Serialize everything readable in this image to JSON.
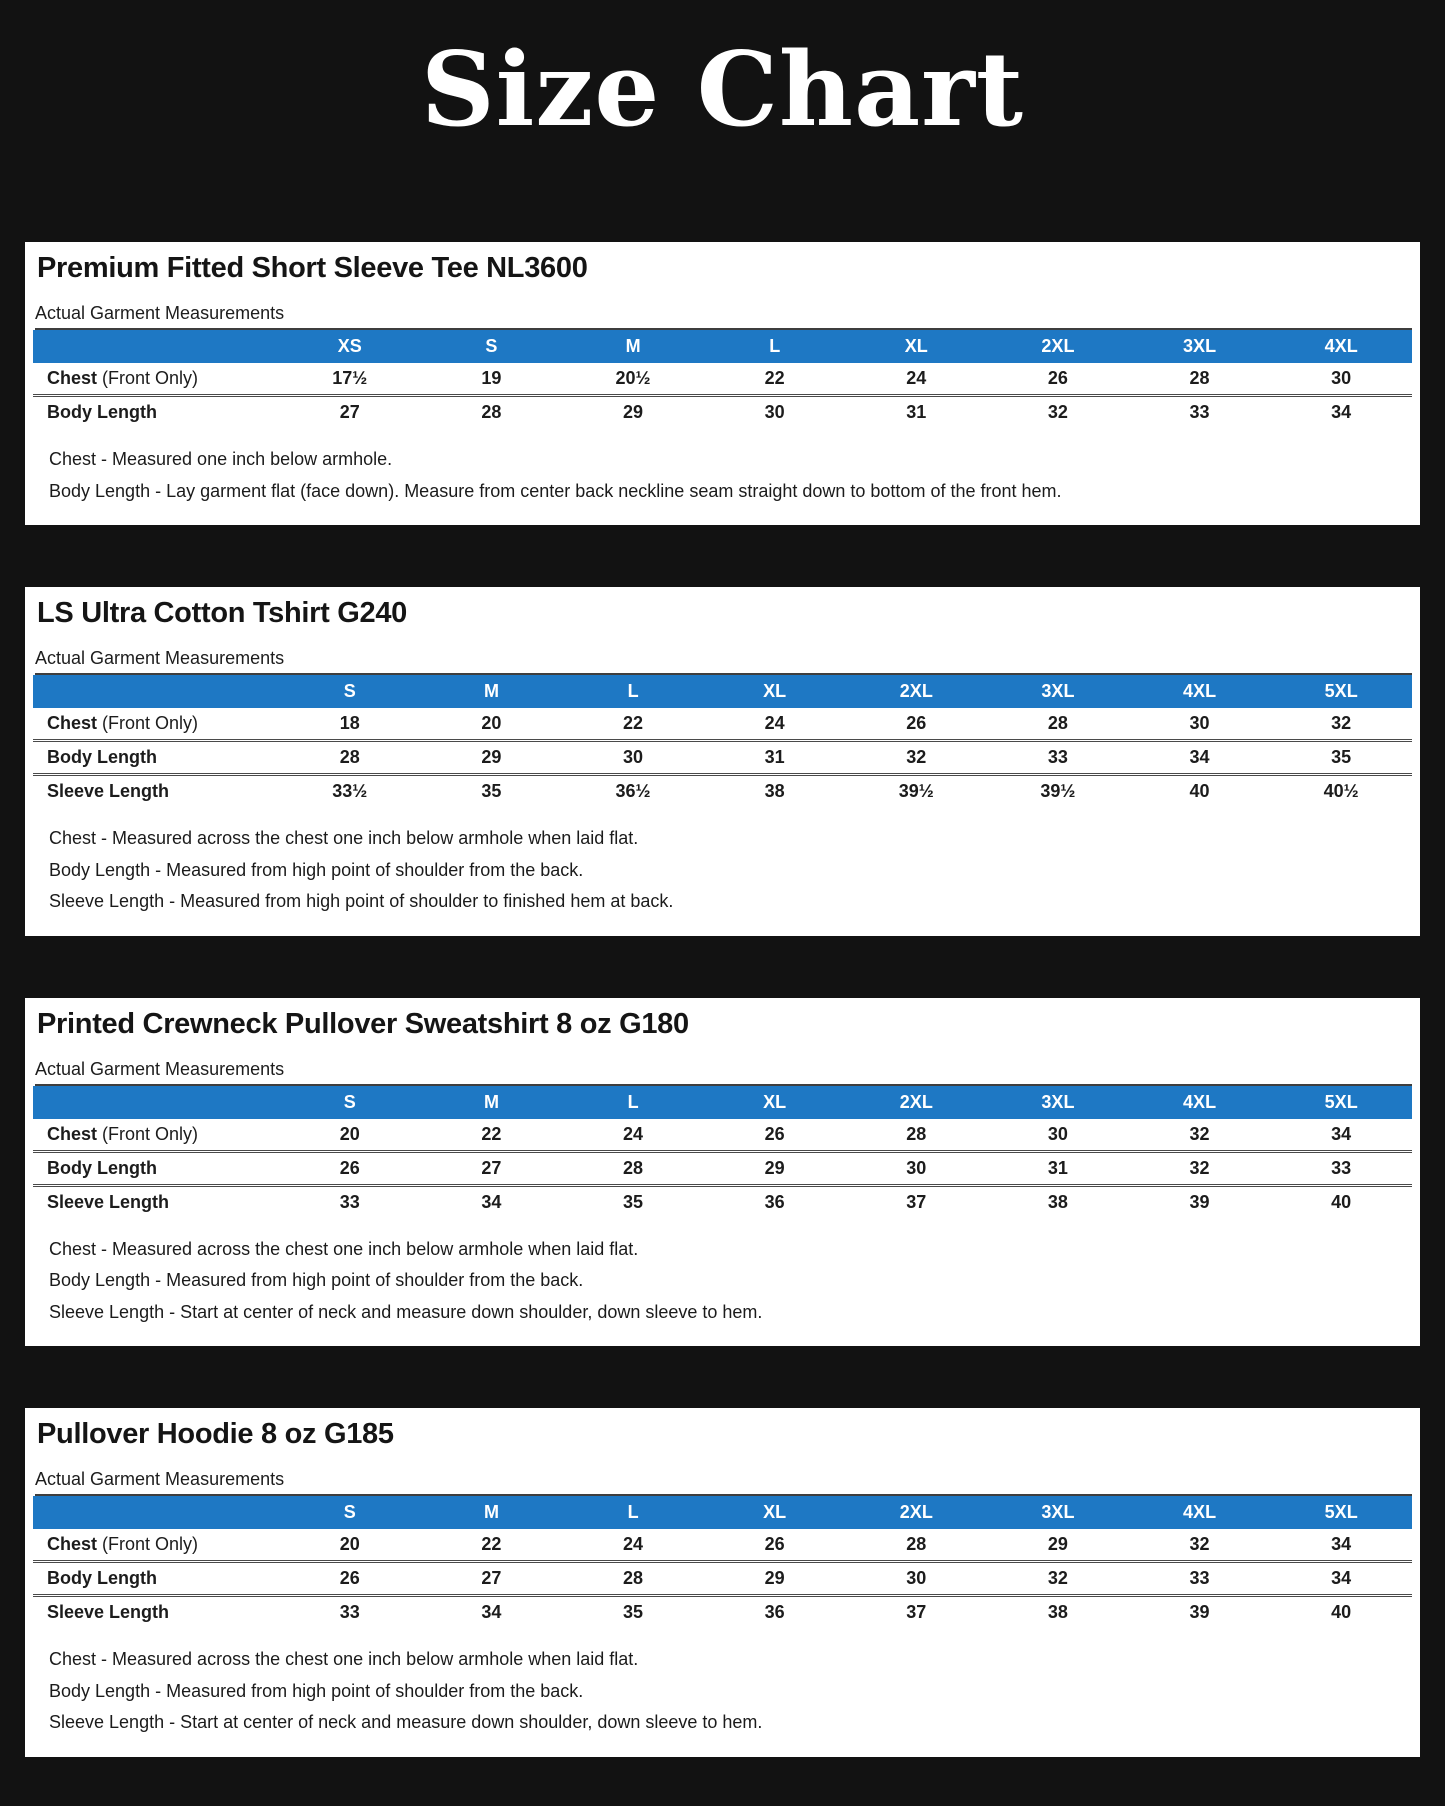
{
  "page_title": "Size Chart",
  "colors": {
    "accent_header_blue": "#1e78c4",
    "page_background": "#121212",
    "panel_background": "#ffffff",
    "header_text": "#ffffff",
    "body_text": "#1c1c1c"
  },
  "tables": [
    {
      "title": "Premium Fitted Short Sleeve Tee NL3600",
      "subtitle": "Actual Garment Measurements",
      "sizes": [
        "XS",
        "S",
        "M",
        "L",
        "XL",
        "2XL",
        "3XL",
        "4XL"
      ],
      "rows": [
        {
          "label": "Chest",
          "label_suffix": " (Front Only)",
          "values": [
            "17½",
            "19",
            "20½",
            "22",
            "24",
            "26",
            "28",
            "30"
          ]
        },
        {
          "label": "Body Length",
          "label_suffix": "",
          "values": [
            "27",
            "28",
            "29",
            "30",
            "31",
            "32",
            "33",
            "34"
          ]
        }
      ],
      "notes": [
        "Chest - Measured one inch below armhole.",
        "Body Length - Lay garment flat (face down). Measure from center back neckline seam straight down to bottom of the front hem."
      ]
    },
    {
      "title": "LS Ultra Cotton Tshirt G240",
      "subtitle": "Actual Garment Measurements",
      "sizes": [
        "S",
        "M",
        "L",
        "XL",
        "2XL",
        "3XL",
        "4XL",
        "5XL"
      ],
      "rows": [
        {
          "label": "Chest",
          "label_suffix": " (Front Only)",
          "values": [
            "18",
            "20",
            "22",
            "24",
            "26",
            "28",
            "30",
            "32"
          ]
        },
        {
          "label": "Body Length",
          "label_suffix": "",
          "values": [
            "28",
            "29",
            "30",
            "31",
            "32",
            "33",
            "34",
            "35"
          ]
        },
        {
          "label": "Sleeve Length",
          "label_suffix": "",
          "values": [
            "33½",
            "35",
            "36½",
            "38",
            "39½",
            "39½",
            "40",
            "40½"
          ]
        }
      ],
      "notes": [
        "Chest - Measured across the chest one inch below armhole when laid flat.",
        "Body Length - Measured from high point of shoulder from the back.",
        "Sleeve Length - Measured from high point of shoulder to finished hem at back."
      ]
    },
    {
      "title": "Printed Crewneck Pullover Sweatshirt 8 oz G180",
      "subtitle": "Actual Garment Measurements",
      "sizes": [
        "S",
        "M",
        "L",
        "XL",
        "2XL",
        "3XL",
        "4XL",
        "5XL"
      ],
      "rows": [
        {
          "label": "Chest",
          "label_suffix": " (Front Only)",
          "values": [
            "20",
            "22",
            "24",
            "26",
            "28",
            "30",
            "32",
            "34"
          ]
        },
        {
          "label": "Body Length",
          "label_suffix": "",
          "values": [
            "26",
            "27",
            "28",
            "29",
            "30",
            "31",
            "32",
            "33"
          ]
        },
        {
          "label": "Sleeve Length",
          "label_suffix": "",
          "values": [
            "33",
            "34",
            "35",
            "36",
            "37",
            "38",
            "39",
            "40"
          ]
        }
      ],
      "notes": [
        "Chest - Measured across the chest one inch below armhole when laid flat.",
        "Body Length - Measured from high point of shoulder from the back.",
        "Sleeve Length - Start at center of neck and measure down shoulder, down sleeve to hem."
      ]
    },
    {
      "title": "Pullover Hoodie 8 oz G185",
      "subtitle": "Actual Garment Measurements",
      "sizes": [
        "S",
        "M",
        "L",
        "XL",
        "2XL",
        "3XL",
        "4XL",
        "5XL"
      ],
      "rows": [
        {
          "label": "Chest",
          "label_suffix": " (Front Only)",
          "values": [
            "20",
            "22",
            "24",
            "26",
            "28",
            "29",
            "32",
            "34"
          ]
        },
        {
          "label": "Body Length",
          "label_suffix": "",
          "values": [
            "26",
            "27",
            "28",
            "29",
            "30",
            "32",
            "33",
            "34"
          ]
        },
        {
          "label": "Sleeve Length",
          "label_suffix": "",
          "values": [
            "33",
            "34",
            "35",
            "36",
            "37",
            "38",
            "39",
            "40"
          ]
        }
      ],
      "notes": [
        "Chest - Measured across the chest one inch below armhole when laid flat.",
        "Body Length - Measured from high point of shoulder from the back.",
        "Sleeve Length - Start at center of neck and measure down shoulder, down sleeve to hem."
      ]
    }
  ]
}
